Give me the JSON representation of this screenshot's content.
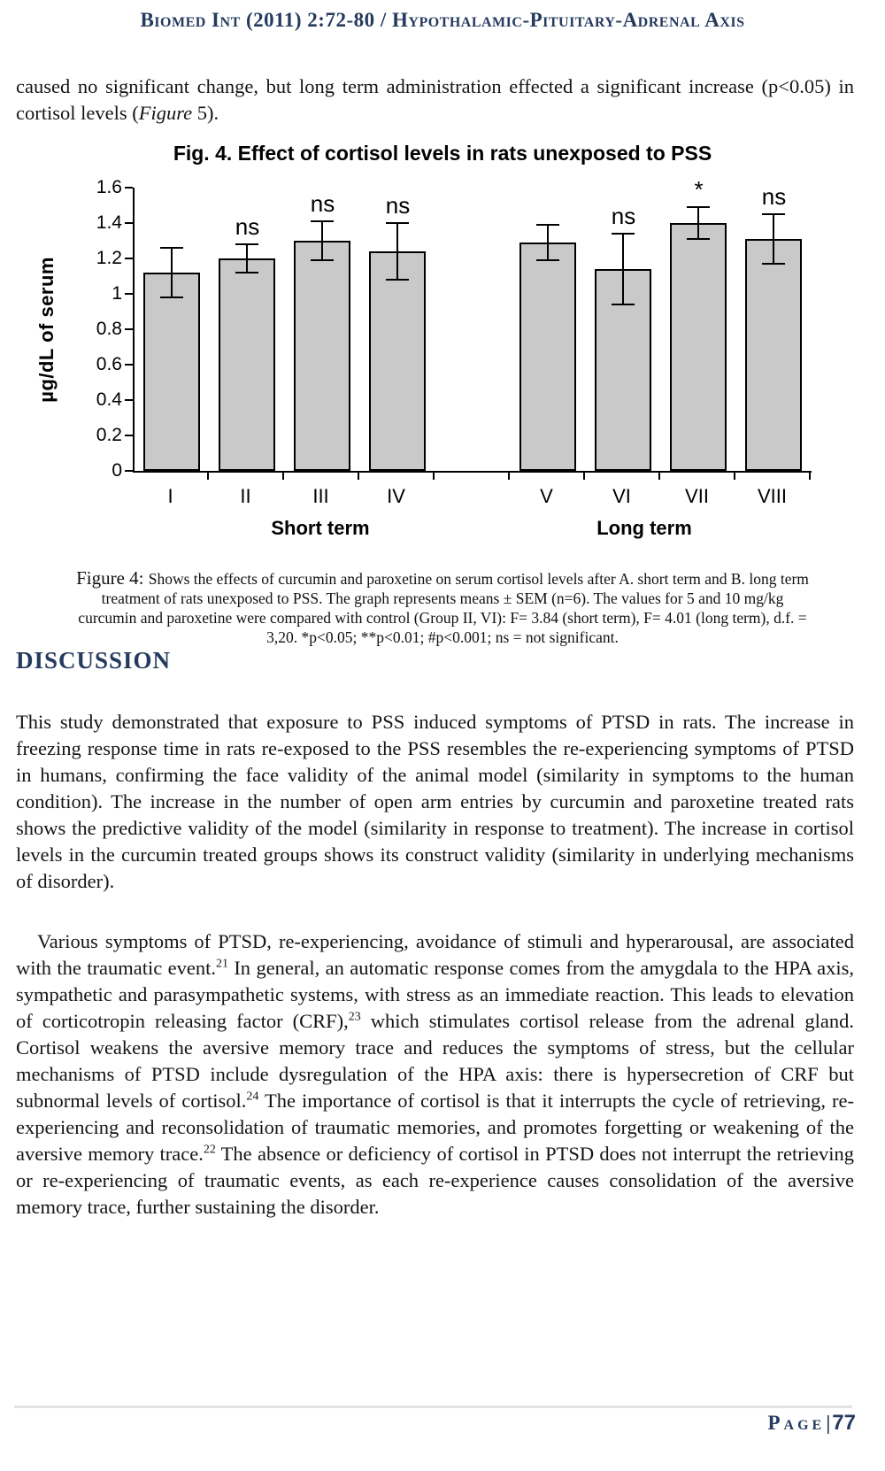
{
  "page": {
    "header": "Biomed Int (2011) 2:72-80 / Hypothalamic-Pituitary-Adrenal Axis",
    "intro_segments": [
      {
        "t": "text",
        "v": "caused no significant change, but long term administration effected a significant increase (p<0.05) in cortisol levels ("
      },
      {
        "t": "i",
        "v": "Figure"
      },
      {
        "t": "text",
        "v": " 5)."
      }
    ],
    "figure_caption": {
      "label": "Figure 4: ",
      "lines": [
        "Shows the effects of curcumin and paroxetine on serum cortisol levels after A. short term and B. long term",
        "treatment of rats unexposed to PSS. The graph represents means ± SEM (n=6). The values for 5 and 10 mg/kg",
        "curcumin and paroxetine were compared with control (Group II, VI): F= 3.84 (short term), F= 4.01 (long term), d.f. =",
        "3,20. *p<0.05; **p<0.01; #p<0.001; ns = not significant."
      ]
    },
    "discussion": {
      "heading": "DISCUSSION",
      "paragraph1": "This study demonstrated that exposure to PSS induced symptoms of PTSD in rats. The increase in freezing response time in rats re-exposed to the PSS resembles the re-experiencing symptoms of PTSD in humans, confirming the face validity of the animal model (similarity in symptoms to the human condition). The increase in the number of open arm entries by curcumin and paroxetine treated rats shows the predictive validity of the model (similarity in response to treatment). The increase in cortisol levels in the curcumin treated groups shows its construct validity (similarity in underlying mechanisms of disorder).",
      "paragraph2_segments": [
        {
          "t": "text",
          "v": "Various symptoms of PTSD, re-experiencing, avoidance of stimuli and hyperarousal, are associated with the traumatic event."
        },
        {
          "t": "sup",
          "v": "21"
        },
        {
          "t": "text",
          "v": " In general, an automatic response comes from the amygdala to the HPA axis, sympathetic and parasympathetic systems, with stress as an immediate reaction. This leads to elevation of corticotropin releasing factor (CRF),"
        },
        {
          "t": "sup",
          "v": "23"
        },
        {
          "t": "text",
          "v": " which stimulates cortisol release from the adrenal gland. Cortisol weakens the aversive memory trace and reduces the symptoms of stress, but the cellular mechanisms of PTSD include dysregulation of the HPA axis: there is hypersecretion of CRF but subnormal levels of cortisol."
        },
        {
          "t": "sup",
          "v": "24"
        },
        {
          "t": "text",
          "v": " The importance of cortisol is that it interrupts the cycle of retrieving, re-experiencing and reconsolidation of traumatic memories, and promotes forgetting or weakening of the aversive memory trace."
        },
        {
          "t": "sup",
          "v": "22"
        },
        {
          "t": "text",
          "v": " The absence or deficiency of cortisol in PTSD does not interrupt the retrieving or re-experiencing of traumatic events, as each re-experience causes consolidation of the aversive memory trace, further sustaining the disorder."
        }
      ]
    },
    "footer": {
      "page_label": "Page",
      "separator": "|",
      "page_number": "77"
    },
    "colors": {
      "accent_navy": "#243a5e",
      "footer_rule": "#e2e2e2"
    }
  },
  "chart_data": {
    "type": "bar",
    "title": "Fig. 4. Effect of cortisol levels in rats unexposed to PSS",
    "xlabel": "",
    "ylabel": "µg/dL of serum",
    "ylim": [
      0,
      1.6
    ],
    "y_ticks": [
      "0",
      "0.2",
      "0.4",
      "0.6",
      "0.8",
      "1",
      "1.2",
      "1.4",
      "1.6"
    ],
    "categories": [
      "I",
      "II",
      "III",
      "IV",
      "V",
      "VI",
      "VII",
      "VIII"
    ],
    "values": [
      1.12,
      1.2,
      1.3,
      1.24,
      1.29,
      1.14,
      1.4,
      1.31
    ],
    "errors": [
      0.14,
      0.08,
      0.11,
      0.16,
      0.1,
      0.2,
      0.09,
      0.14
    ],
    "sig_labels": [
      "",
      "ns",
      "ns",
      "ns",
      "",
      "ns",
      "*",
      "ns"
    ],
    "groups": [
      {
        "label": "Short term",
        "categories": [
          "I",
          "II",
          "III",
          "IV"
        ]
      },
      {
        "label": "Long term",
        "categories": [
          "V",
          "VI",
          "VII",
          "VIII"
        ]
      }
    ],
    "bar_color": "#c9c9c9",
    "axis_color": "#000000",
    "grid": false,
    "legend": "none"
  }
}
